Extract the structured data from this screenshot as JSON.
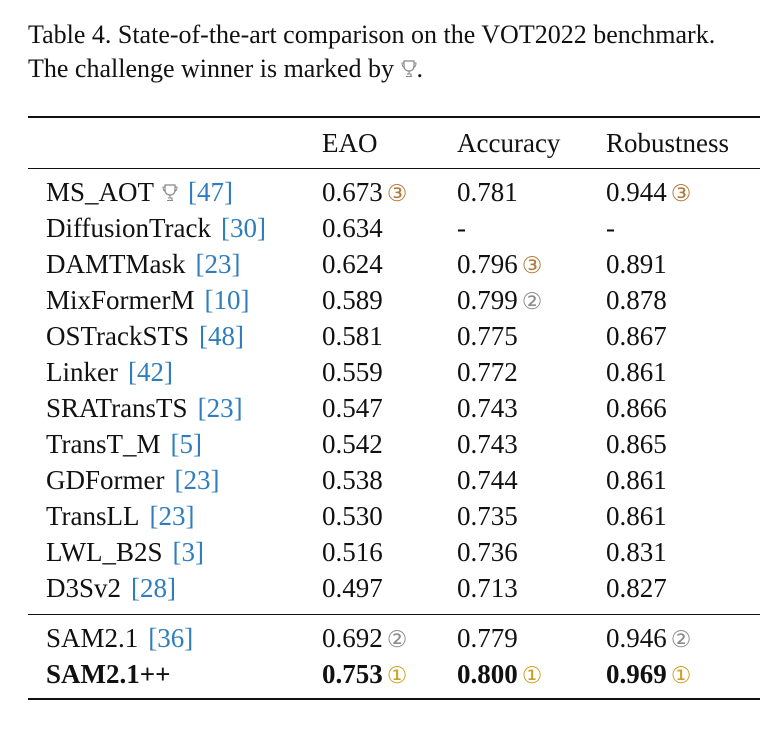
{
  "caption": {
    "line1": "Table 4. State-of-the-art comparison on the VOT2022 benchmark.",
    "line2_before": "The challenge winner is marked by ",
    "line2_after": "."
  },
  "headers": {
    "eao": "EAO",
    "accuracy": "Accuracy",
    "robustness": "Robustness"
  },
  "rank_badges": {
    "1": "①",
    "2": "②",
    "3": "③"
  },
  "colors": {
    "citation": "#2f7dbd",
    "rank1": "#c9a227",
    "rank2": "#8c8c8c",
    "rank3": "#b07a3c"
  },
  "rows": [
    {
      "name": "MS_AOT",
      "trophy": true,
      "cite": "[47]",
      "eao": "0.673",
      "eao_rank": "③",
      "acc": "0.781",
      "acc_rank": "",
      "rob": "0.944",
      "rob_rank": "③"
    },
    {
      "name": "DiffusionTrack",
      "cite": "[30]",
      "eao": "0.634",
      "eao_rank": "",
      "acc": "-",
      "acc_rank": "",
      "rob": "-",
      "rob_rank": ""
    },
    {
      "name": "DAMTMask",
      "cite": "[23]",
      "eao": "0.624",
      "eao_rank": "",
      "acc": "0.796",
      "acc_rank": "③",
      "rob": "0.891",
      "rob_rank": ""
    },
    {
      "name": "MixFormerM",
      "cite": "[10]",
      "eao": "0.589",
      "eao_rank": "",
      "acc": "0.799",
      "acc_rank": "②",
      "rob": "0.878",
      "rob_rank": ""
    },
    {
      "name": "OSTrackSTS",
      "cite": "[48]",
      "eao": "0.581",
      "eao_rank": "",
      "acc": "0.775",
      "acc_rank": "",
      "rob": "0.867",
      "rob_rank": ""
    },
    {
      "name": "Linker",
      "cite": "[42]",
      "eao": "0.559",
      "eao_rank": "",
      "acc": "0.772",
      "acc_rank": "",
      "rob": "0.861",
      "rob_rank": ""
    },
    {
      "name": "SRATransTS",
      "cite": "[23]",
      "eao": "0.547",
      "eao_rank": "",
      "acc": "0.743",
      "acc_rank": "",
      "rob": "0.866",
      "rob_rank": ""
    },
    {
      "name": "TransT_M",
      "cite": "[5]",
      "eao": "0.542",
      "eao_rank": "",
      "acc": "0.743",
      "acc_rank": "",
      "rob": "0.865",
      "rob_rank": ""
    },
    {
      "name": "GDFormer",
      "cite": "[23]",
      "eao": "0.538",
      "eao_rank": "",
      "acc": "0.744",
      "acc_rank": "",
      "rob": "0.861",
      "rob_rank": ""
    },
    {
      "name": "TransLL",
      "cite": "[23]",
      "eao": "0.530",
      "eao_rank": "",
      "acc": "0.735",
      "acc_rank": "",
      "rob": "0.861",
      "rob_rank": ""
    },
    {
      "name": "LWL_B2S",
      "cite": "[3]",
      "eao": "0.516",
      "eao_rank": "",
      "acc": "0.736",
      "acc_rank": "",
      "rob": "0.831",
      "rob_rank": ""
    },
    {
      "name": "D3Sv2",
      "cite": "[28]",
      "eao": "0.497",
      "eao_rank": "",
      "acc": "0.713",
      "acc_rank": "",
      "rob": "0.827",
      "rob_rank": ""
    }
  ],
  "ours_rows": [
    {
      "name": "SAM2.1",
      "cite": "[36]",
      "bold": false,
      "eao": "0.692",
      "eao_rank": "②",
      "acc": "0.779",
      "acc_rank": "",
      "rob": "0.946",
      "rob_rank": "②"
    },
    {
      "name": "SAM2.1++",
      "cite": "",
      "bold": true,
      "eao": "0.753",
      "eao_rank": "①",
      "acc": "0.800",
      "acc_rank": "①",
      "rob": "0.969",
      "rob_rank": "①"
    }
  ]
}
